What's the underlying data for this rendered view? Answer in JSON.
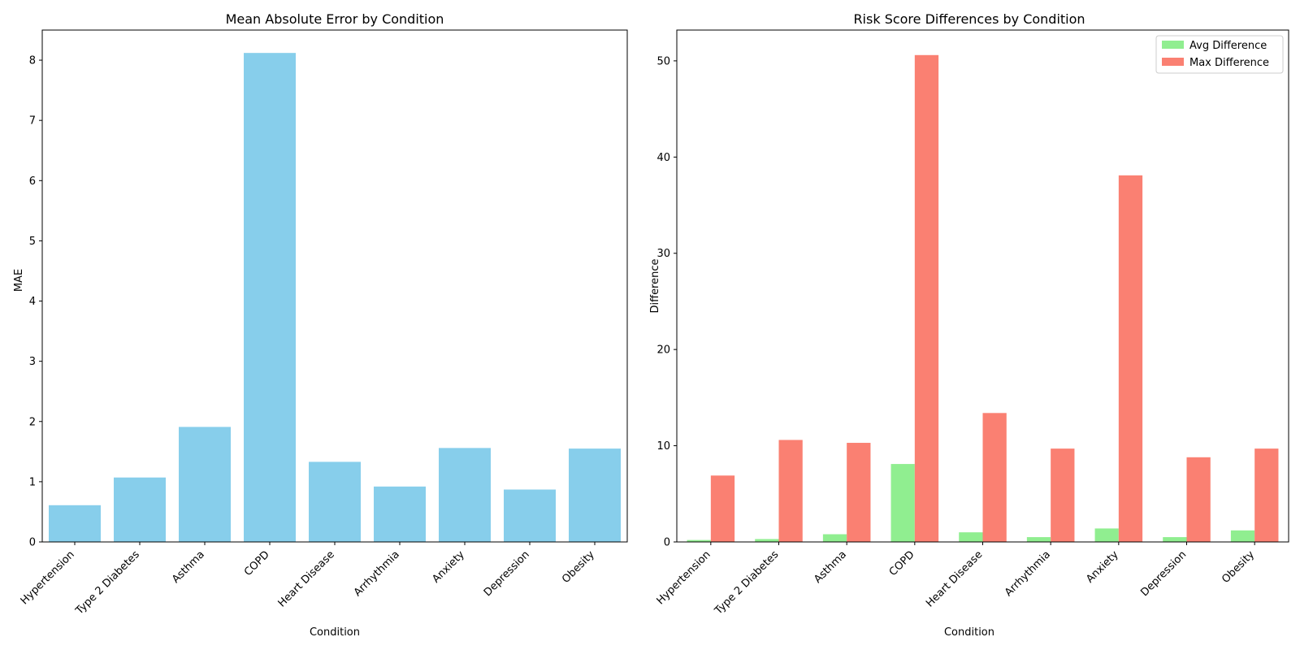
{
  "chart_data": [
    {
      "type": "bar",
      "title": "Mean Absolute Error by Condition",
      "xlabel": "Condition",
      "ylabel": "MAE",
      "categories": [
        "Hypertension",
        "Type 2 Diabetes",
        "Asthma",
        "COPD",
        "Heart Disease",
        "Arrhythmia",
        "Anxiety",
        "Depression",
        "Obesity"
      ],
      "values": [
        0.61,
        1.07,
        1.91,
        8.12,
        1.33,
        0.92,
        1.56,
        0.87,
        1.55
      ],
      "ylim": [
        0,
        8.5
      ],
      "yticks": [
        0,
        1,
        2,
        3,
        4,
        5,
        6,
        7,
        8
      ],
      "grid": false,
      "colors": [
        "#87CEEB"
      ]
    },
    {
      "type": "bar",
      "title": "Risk Score Differences by Condition",
      "xlabel": "Condition",
      "ylabel": "Difference",
      "categories": [
        "Hypertension",
        "Type 2 Diabetes",
        "Asthma",
        "COPD",
        "Heart Disease",
        "Arrhythmia",
        "Anxiety",
        "Depression",
        "Obesity"
      ],
      "series": [
        {
          "name": "Avg Difference",
          "values": [
            0.2,
            0.3,
            0.8,
            8.1,
            1.0,
            0.5,
            1.4,
            0.5,
            1.2
          ],
          "color": "#90EE90"
        },
        {
          "name": "Max Difference",
          "values": [
            6.9,
            10.6,
            10.3,
            50.6,
            13.4,
            9.7,
            38.1,
            8.8,
            9.7
          ],
          "color": "#FA8072"
        }
      ],
      "ylim": [
        0,
        53.2
      ],
      "yticks": [
        0,
        10,
        20,
        30,
        40,
        50
      ],
      "grid": false,
      "legend": "top-right"
    }
  ]
}
